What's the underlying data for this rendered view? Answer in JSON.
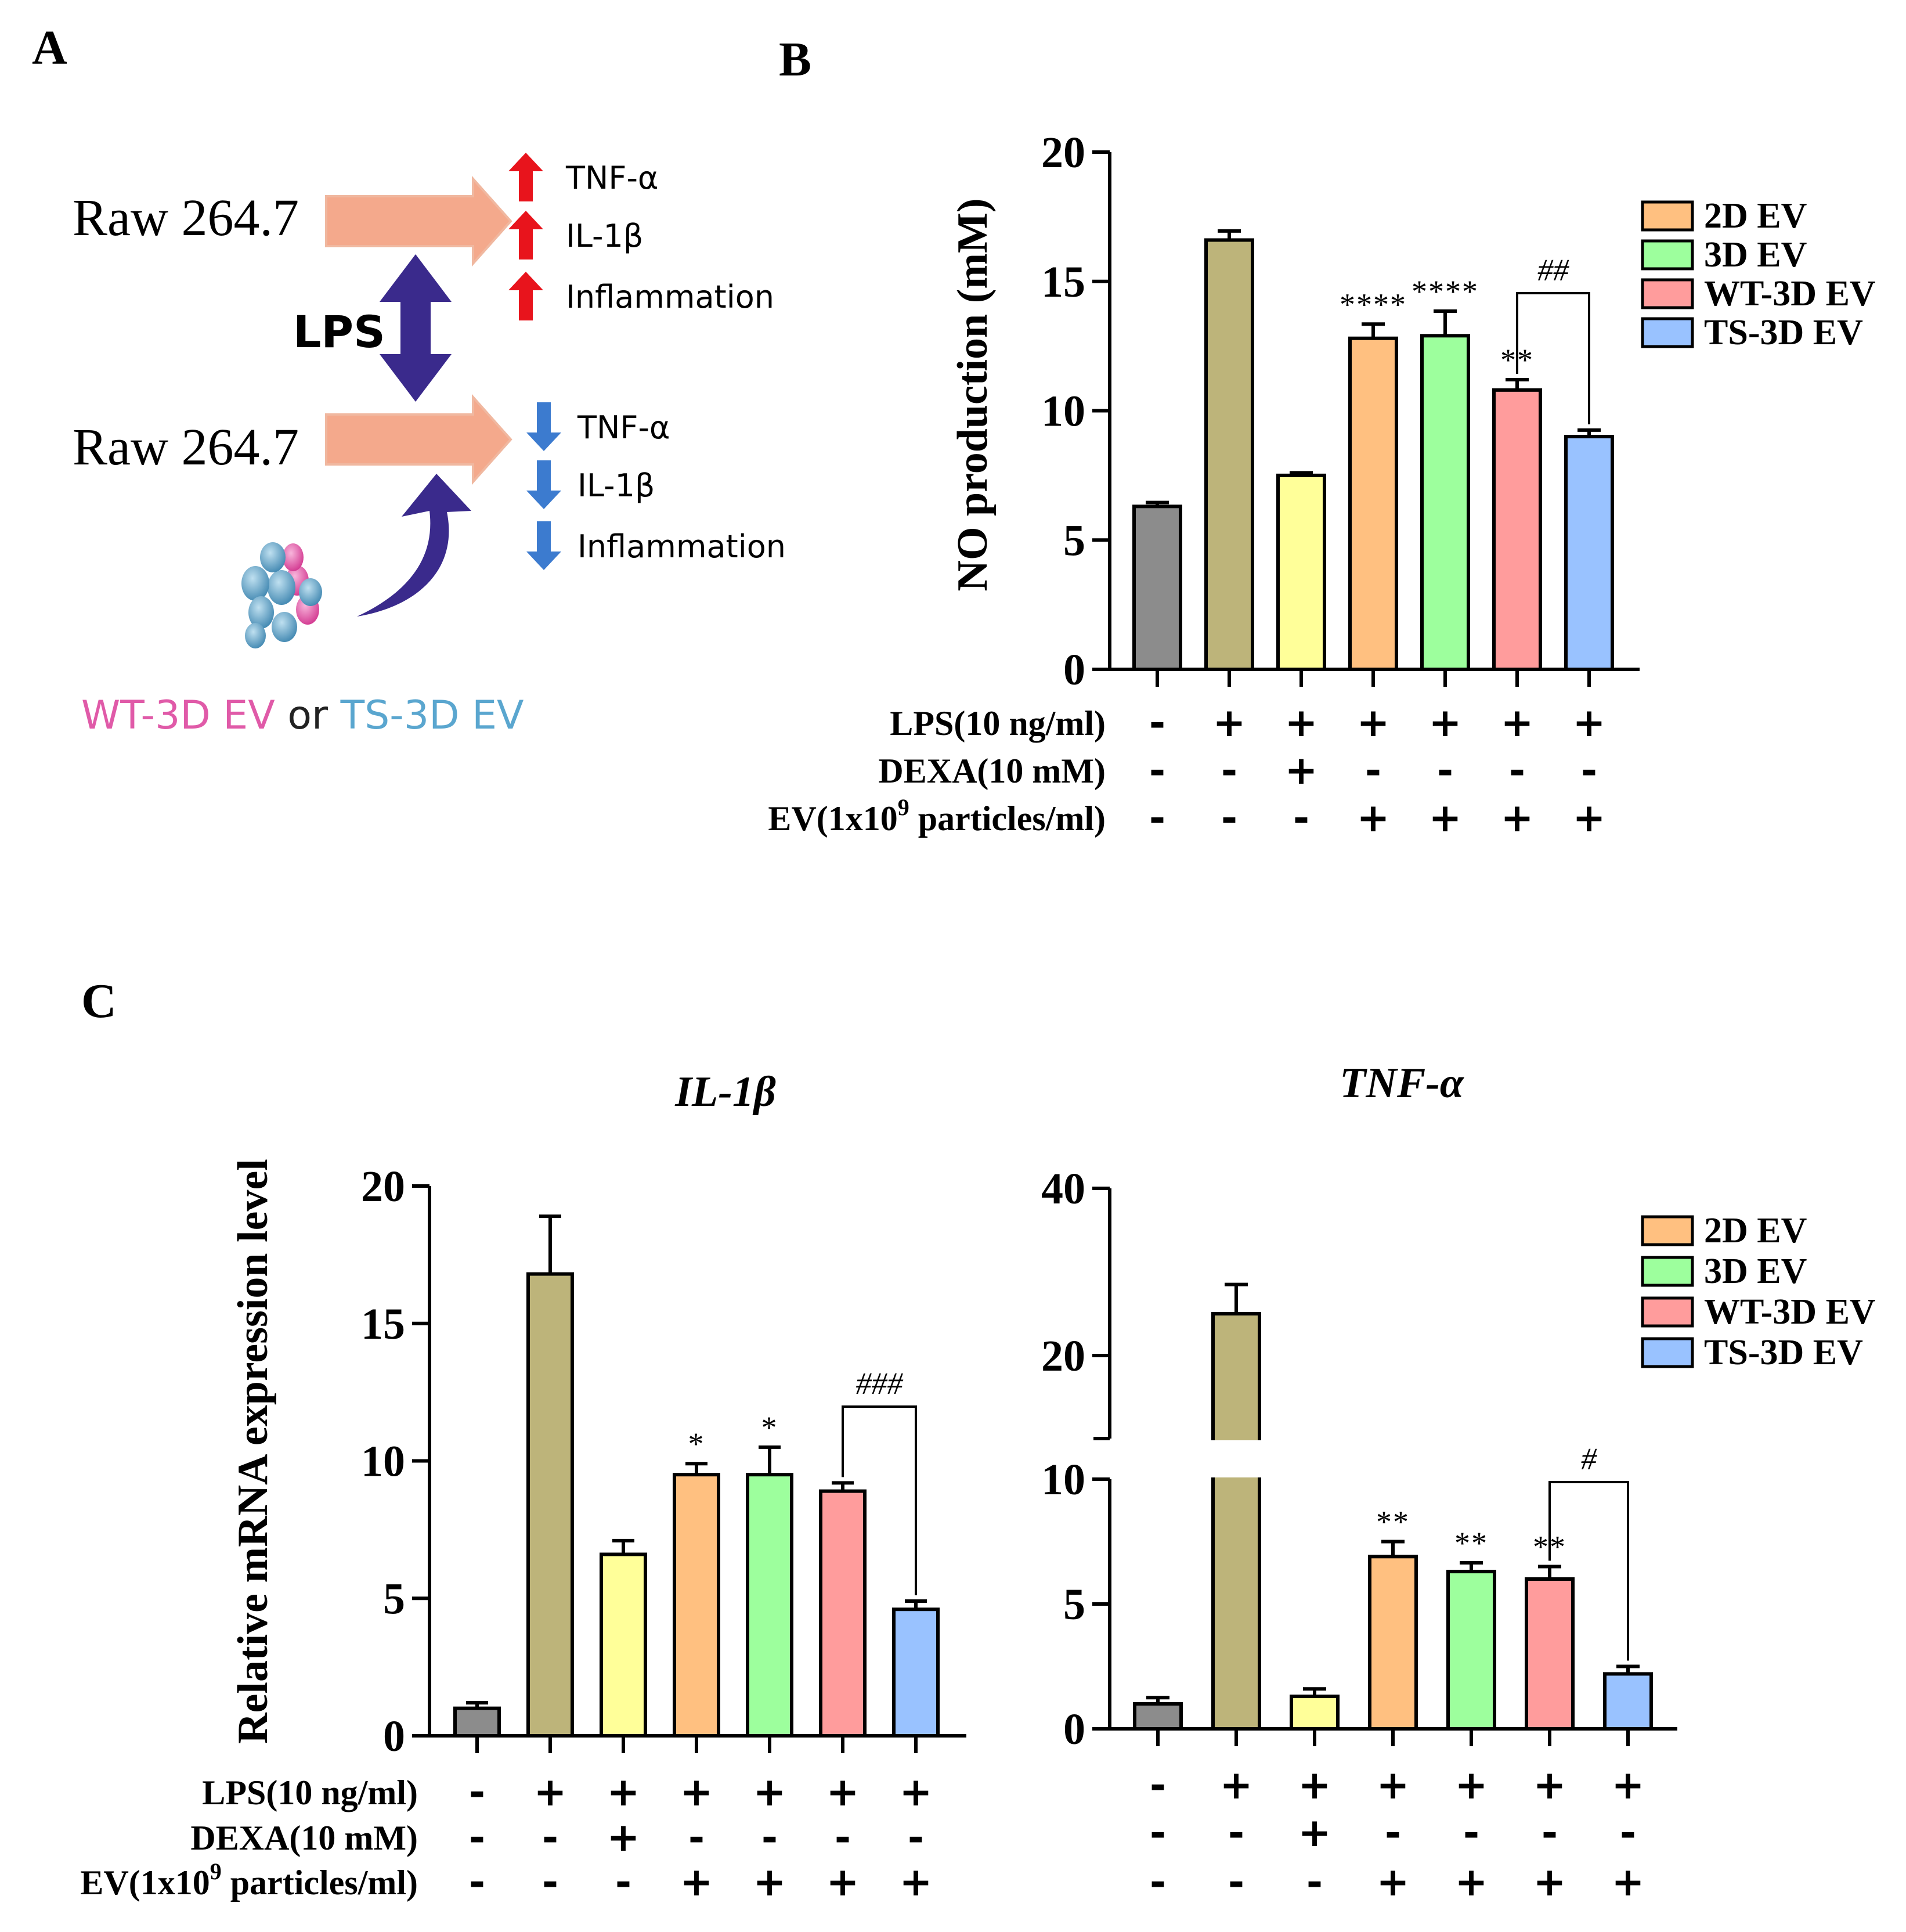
{
  "panel_letters": {
    "a": "A",
    "b": "B",
    "c": "C"
  },
  "schematic": {
    "cell_label_top": "Raw 264.7",
    "cell_label_bottom": "Raw 264.7",
    "stimulus": "LPS",
    "up_items": [
      "TNF-α",
      "IL-1β",
      "Inflammation"
    ],
    "down_items": [
      "TNF-α",
      "IL-1β",
      "Inflammation"
    ],
    "ev_wt": "WT-3D EV",
    "ev_or": " or ",
    "ev_ts": "TS-3D EV",
    "colors": {
      "up": "#e8141c",
      "down": "#3c7bcf",
      "arrow": "#f4a98c",
      "lps": "#3a2a8c",
      "wt": "#e05aa8",
      "ts": "#5aa6cf"
    }
  },
  "colors": {
    "bars": [
      "#8c8c8c",
      "#bdb47a",
      "#ffff99",
      "#ffc080",
      "#9dff9d",
      "#ff9c9c",
      "#99c2ff"
    ]
  },
  "legend": [
    "2D EV",
    "3D EV",
    "WT-3D EV",
    "TS-3D EV"
  ],
  "conditions": {
    "rows": [
      "LPS(10 ng/ml)",
      "DEXA(10 mM)",
      "EV(1x10",
      "9",
      " particles/ml)"
    ],
    "lps": [
      "-",
      "+",
      "+",
      "+",
      "+",
      "+",
      "+"
    ],
    "dexa": [
      "-",
      "-",
      "+",
      "-",
      "-",
      "-",
      "-"
    ],
    "ev": [
      "-",
      "-",
      "-",
      "+",
      "+",
      "+",
      "+"
    ]
  },
  "chart_data": [
    {
      "id": "B",
      "type": "bar",
      "ylabel": "NO production (mM)",
      "ylim": [
        0,
        20
      ],
      "yticks": [
        "0",
        "5",
        "10",
        "15",
        "20"
      ],
      "values": [
        6.3,
        16.6,
        7.5,
        12.8,
        12.9,
        10.8,
        9.0
      ],
      "errors": [
        0.15,
        0.35,
        0.1,
        0.55,
        0.95,
        0.4,
        0.25
      ],
      "annotations": [
        "",
        "",
        "",
        "****",
        "****",
        "**",
        ""
      ],
      "bracket": {
        "from": 5,
        "to": 6,
        "label": "##"
      }
    },
    {
      "id": "C-IL1b",
      "type": "bar",
      "title": "IL-1β",
      "ylabel": "Relative mRNA expression level",
      "ylim": [
        0,
        20
      ],
      "yticks": [
        "0",
        "5",
        "10",
        "15",
        "20"
      ],
      "values": [
        1.0,
        16.8,
        6.6,
        9.5,
        9.5,
        8.9,
        4.6
      ],
      "errors": [
        0.2,
        2.1,
        0.5,
        0.4,
        1.0,
        0.3,
        0.3
      ],
      "annotations": [
        "",
        "",
        "",
        "*",
        "*",
        "",
        ""
      ],
      "bracket": {
        "from": 5,
        "to": 6,
        "label": "###"
      }
    },
    {
      "id": "C-TNFa",
      "type": "bar",
      "title": "TNF-α",
      "ylim": [
        0,
        40
      ],
      "broken_axis": {
        "lower": [
          0,
          10
        ],
        "upper": [
          10,
          40
        ]
      },
      "yticks": [
        "0",
        "5",
        "10",
        "20",
        "40"
      ],
      "values": [
        1.0,
        25.0,
        1.3,
        6.9,
        6.3,
        6.0,
        2.2
      ],
      "errors": [
        0.25,
        3.5,
        0.3,
        0.6,
        0.35,
        0.5,
        0.3
      ],
      "annotations": [
        "",
        "",
        "",
        "**",
        "**",
        "**",
        ""
      ],
      "bracket": {
        "from": 5,
        "to": 6,
        "label": "#"
      }
    }
  ]
}
